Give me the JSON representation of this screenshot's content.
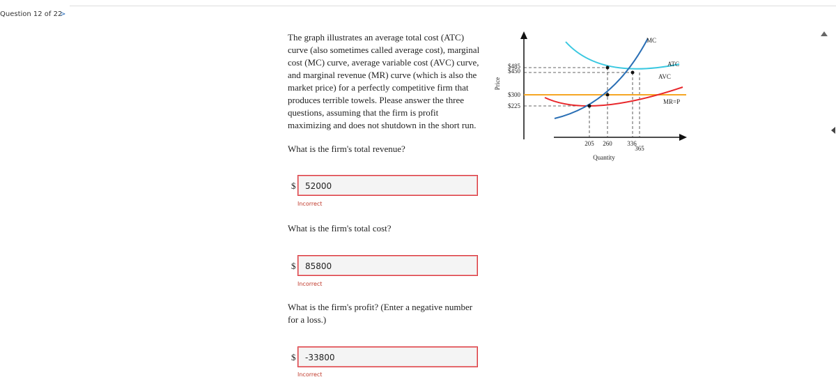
{
  "header": {
    "question": "Question 12 of 22",
    "next": ">"
  },
  "prompt": "The graph illustrates an average total cost (ATC) curve (also sometimes called average cost), marginal cost (MC) curve, average variable cost (AVC) curve, and marginal revenue (MR) curve (which is also the market price) for a perfectly competitive firm that produces terrible towels. Please answer the three questions, assuming that the firm is profit maximizing and does not shutdown in the short run.",
  "graph": {
    "y_axis_label": "Price",
    "x_axis_label": "Quantity",
    "price_labels": [
      "$485",
      "$450",
      "$300",
      "$225"
    ],
    "quantity_labels": [
      "205",
      "260",
      "336",
      "365"
    ],
    "curve_labels": [
      "MC",
      "ATC",
      "AVC",
      "MR=P"
    ]
  },
  "questions": [
    {
      "text": "What is the firm's total revenue?",
      "currency": "$",
      "answer": "52000",
      "feedback": "Incorrect"
    },
    {
      "text": "What is the firm's total cost?",
      "currency": "$",
      "answer": "85800",
      "feedback": "Incorrect"
    },
    {
      "text": "What is the firm's profit? (Enter a negative number for a loss.)",
      "currency": "$",
      "answer": "-33800",
      "feedback": "Incorrect"
    }
  ]
}
